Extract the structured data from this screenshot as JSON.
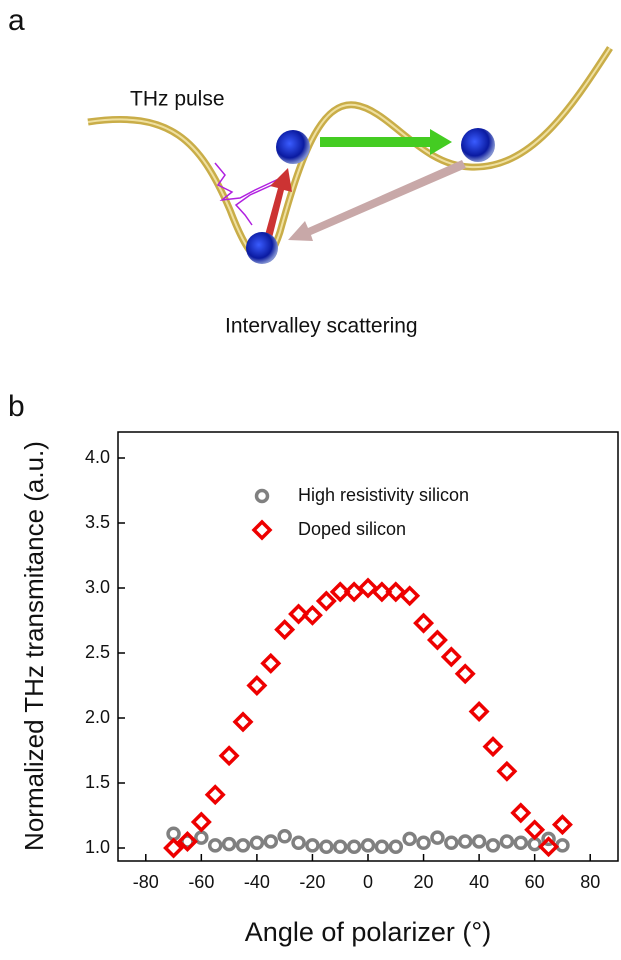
{
  "panel_labels": [
    "a",
    "b"
  ],
  "diagram": {
    "pulse_label": "THz pulse",
    "caption": "Intervalley scattering"
  },
  "chart_data": {
    "type": "scatter",
    "x_label": "Angle of polarizer (°)",
    "y_label": "Normalized THz transmitance (a.u.)",
    "x": [
      -70,
      -65,
      -60,
      -55,
      -50,
      -45,
      -40,
      -35,
      -30,
      -25,
      -20,
      -15,
      -10,
      -5,
      0,
      5,
      10,
      15,
      20,
      25,
      30,
      35,
      40,
      45,
      50,
      55,
      60,
      65,
      70
    ],
    "series": [
      {
        "name": "High resistivity silicon",
        "color": "#808080",
        "marker": "circle",
        "values": [
          1.11,
          1.05,
          1.08,
          1.02,
          1.03,
          1.02,
          1.04,
          1.05,
          1.09,
          1.04,
          1.02,
          1.01,
          1.01,
          1.01,
          1.02,
          1.01,
          1.01,
          1.07,
          1.04,
          1.08,
          1.04,
          1.05,
          1.05,
          1.02,
          1.05,
          1.04,
          1.03,
          1.07,
          1.02
        ]
      },
      {
        "name": "Doped silicon",
        "color": "#ee0000",
        "marker": "diamond",
        "values": [
          1.0,
          1.05,
          1.2,
          1.41,
          1.71,
          1.97,
          2.25,
          2.42,
          2.68,
          2.8,
          2.79,
          2.9,
          2.97,
          2.97,
          3.0,
          2.97,
          2.97,
          2.94,
          2.73,
          2.6,
          2.47,
          2.34,
          2.05,
          1.78,
          1.59,
          1.27,
          1.14,
          1.01,
          1.18
        ]
      }
    ],
    "xlim": [
      -90,
      90
    ],
    "xticks": [
      -80,
      -60,
      -40,
      -20,
      0,
      20,
      40,
      60,
      80
    ],
    "ylim": [
      0.9,
      4.2
    ],
    "yticks": [
      {
        "value": 1,
        "label": "1.0"
      },
      {
        "value": 1.5,
        "label": "1.5"
      },
      {
        "value": 2,
        "label": "2.0"
      },
      {
        "value": 2.5,
        "label": "2.5"
      },
      {
        "value": 3,
        "label": "3.0"
      },
      {
        "value": 3.5,
        "label": "3.5"
      },
      {
        "value": 4,
        "label": "4.0"
      }
    ],
    "legend": "top"
  }
}
